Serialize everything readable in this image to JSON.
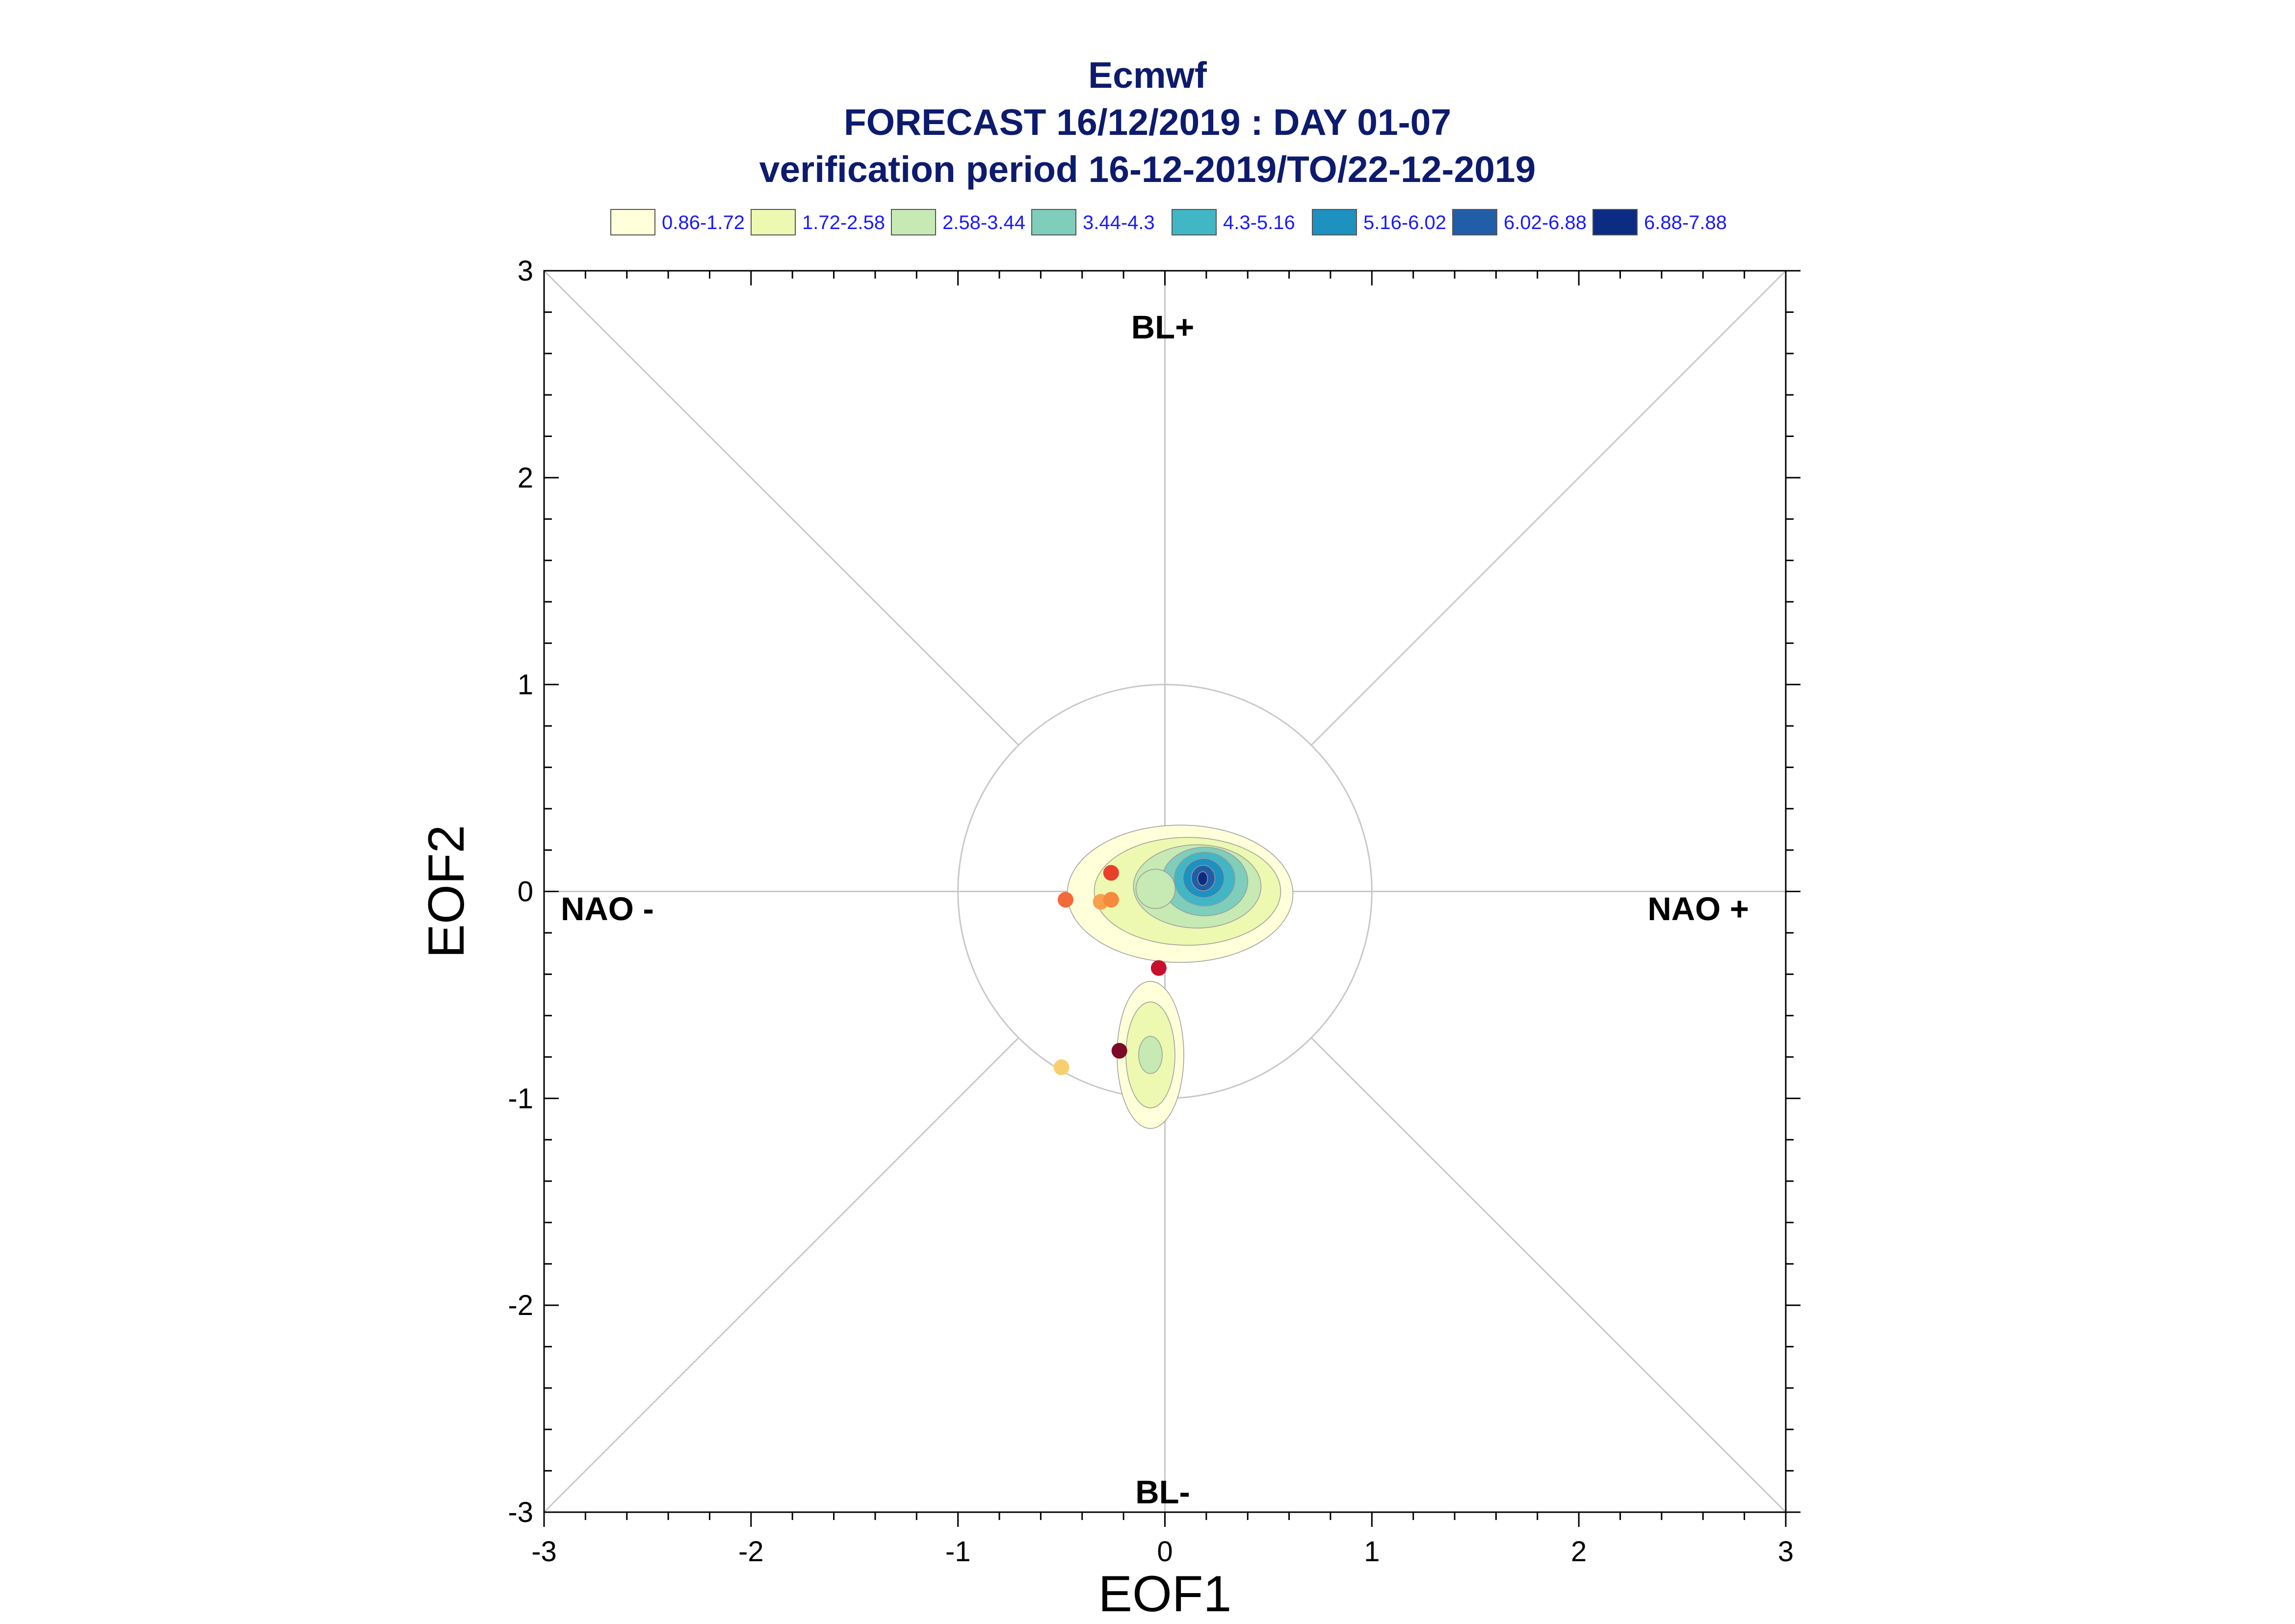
{
  "title": {
    "line1": "Ecmwf",
    "line2": "FORECAST 16/12/2019 : DAY 01-07",
    "line3": "verification period 16-12-2019/TO/22-12-2019"
  },
  "legend": [
    {
      "label": "0.86-1.72",
      "color": "#ffffd9"
    },
    {
      "label": "1.72-2.58",
      "color": "#edf8b1"
    },
    {
      "label": "2.58-3.44",
      "color": "#c7e9b4"
    },
    {
      "label": "3.44-4.3",
      "color": "#7fcdbb"
    },
    {
      "label": "4.3-5.16",
      "color": "#41b6c4"
    },
    {
      "label": "5.16-6.02",
      "color": "#1d91c0"
    },
    {
      "label": "6.02-6.88",
      "color": "#225ea8"
    },
    {
      "label": "6.88-7.88",
      "color": "#0c2c84"
    }
  ],
  "regime_labels": {
    "top": "BL+",
    "bottom": "BL-",
    "left": "NAO -",
    "right": "NAO +"
  },
  "chart_data": {
    "type": "scatter",
    "xlabel": "EOF1",
    "ylabel": "EOF2",
    "xlim": [
      -3,
      3
    ],
    "ylim": [
      -3,
      3
    ],
    "xticks": [
      "-3",
      "-2",
      "-1",
      "0",
      "1",
      "2",
      "3"
    ],
    "yticks": [
      "-3",
      "-2",
      "-1",
      "0",
      "1",
      "2",
      "3"
    ],
    "reference_circle_radius": 1,
    "diagonals": true,
    "axis_lines": true,
    "points": [
      {
        "x": -0.26,
        "y": 0.09,
        "color": "#e8402a"
      },
      {
        "x": -0.48,
        "y": -0.04,
        "color": "#f26a3a"
      },
      {
        "x": -0.31,
        "y": -0.05,
        "color": "#f9a04d"
      },
      {
        "x": -0.26,
        "y": -0.04,
        "color": "#f58a3c"
      },
      {
        "x": -0.03,
        "y": -0.37,
        "color": "#c8102e"
      },
      {
        "x": -0.22,
        "y": -0.77,
        "color": "#7a0a28"
      },
      {
        "x": -0.5,
        "y": -0.85,
        "color": "#f7cf6e"
      }
    ],
    "density_clusters": [
      {
        "cx": 0.18,
        "cy": 0.06,
        "peak_level": 7
      },
      {
        "cx": -0.07,
        "cy": -0.79,
        "peak_level": 2
      }
    ]
  }
}
